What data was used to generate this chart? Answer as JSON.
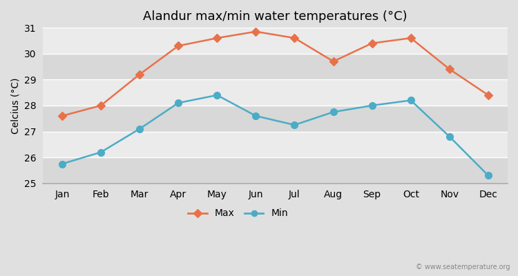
{
  "title": "Alandur max/min water temperatures (°C)",
  "ylabel": "Celcius (°C)",
  "months": [
    "Jan",
    "Feb",
    "Mar",
    "Apr",
    "May",
    "Jun",
    "Jul",
    "Aug",
    "Sep",
    "Oct",
    "Nov",
    "Dec"
  ],
  "max_temps": [
    27.6,
    28.0,
    29.2,
    30.3,
    30.6,
    30.85,
    30.6,
    29.7,
    30.4,
    30.6,
    29.4,
    28.4
  ],
  "min_temps": [
    25.75,
    26.2,
    27.1,
    28.1,
    28.4,
    27.6,
    27.25,
    27.75,
    28.0,
    28.2,
    26.8,
    25.3
  ],
  "max_color": "#e8714a",
  "min_color": "#4bacc6",
  "fig_bg_color": "#e0e0e0",
  "band_light": "#ebebeb",
  "band_dark": "#d8d8d8",
  "ylim": [
    25,
    31
  ],
  "yticks": [
    25,
    26,
    27,
    28,
    29,
    30,
    31
  ],
  "watermark": "© www.seatemperature.org",
  "legend_max": "Max",
  "legend_min": "Min"
}
